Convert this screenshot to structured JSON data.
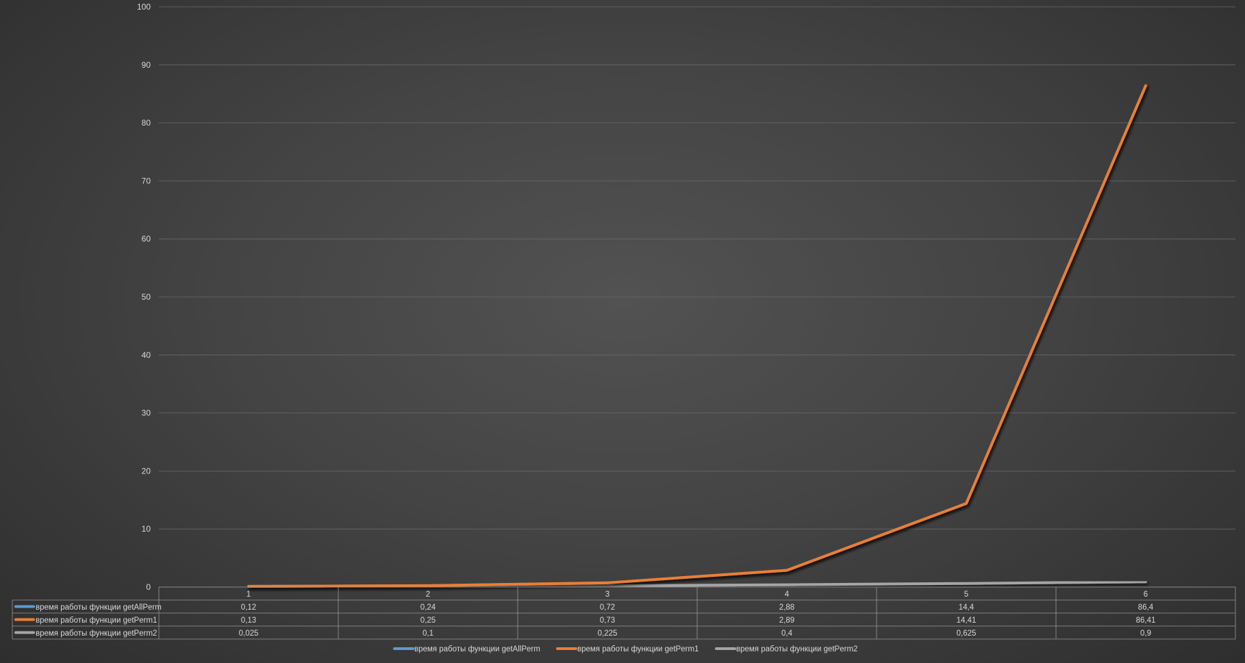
{
  "chart_data": {
    "type": "line",
    "title": "",
    "xlabel": "",
    "ylabel": "",
    "ylim": [
      0,
      100
    ],
    "y_ticks": [
      "0",
      "10",
      "20",
      "30",
      "40",
      "50",
      "60",
      "70",
      "80",
      "90",
      "100"
    ],
    "grid": true,
    "legend_position": "bottom",
    "data_table": true,
    "categories": [
      "1",
      "2",
      "3",
      "4",
      "5",
      "6"
    ],
    "series": [
      {
        "name": "время работы функции getAllPerm",
        "color": "#5b9bd5",
        "values": [
          0.12,
          0.24,
          0.72,
          2.88,
          14.4,
          86.4
        ],
        "labels": [
          "0,12",
          "0,24",
          "0,72",
          "2,88",
          "14,4",
          "86,4"
        ]
      },
      {
        "name": "время работы функции getPerm1",
        "color": "#ed7d31",
        "values": [
          0.13,
          0.25,
          0.73,
          2.89,
          14.41,
          86.41
        ],
        "labels": [
          "0,13",
          "0,25",
          "0,73",
          "2,89",
          "14,41",
          "86,41"
        ]
      },
      {
        "name": "время работы функции getPerm2",
        "color": "#a5a5a5",
        "values": [
          0.025,
          0.1,
          0.225,
          0.4,
          0.625,
          0.9
        ],
        "labels": [
          "0,025",
          "0,1",
          "0,225",
          "0,4",
          "0,625",
          "0,9"
        ]
      }
    ]
  }
}
